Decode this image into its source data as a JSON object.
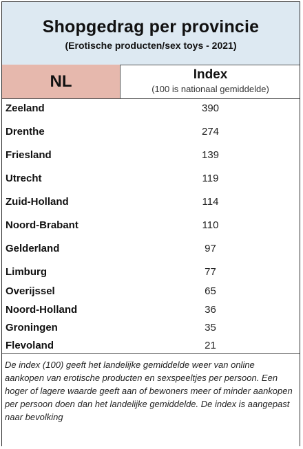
{
  "header": {
    "title": "Shopgedrag per provincie",
    "subtitle": "(Erotische producten/sex toys -  2021)"
  },
  "table_header": {
    "region": "NL",
    "index_label": "Index",
    "index_sub": "(100 is nationaal gemiddelde)"
  },
  "chart_data": {
    "type": "table",
    "title": "Shopgedrag per provincie",
    "subtitle": "(Erotische producten/sex toys -  2021)",
    "columns": [
      "NL",
      "Index"
    ],
    "categories": [
      "Zeeland",
      "Drenthe",
      "Friesland",
      "Utrecht",
      "Zuid-Holland",
      "Noord-Brabant",
      "Gelderland",
      "Limburg",
      "Overijssel",
      "Noord-Holland",
      "Groningen",
      "Flevoland"
    ],
    "values": [
      390,
      274,
      139,
      119,
      114,
      110,
      97,
      77,
      65,
      36,
      35,
      21
    ]
  },
  "footer": {
    "note": "De index (100) geeft het landelijke gemiddelde weer van online aankopen van erotische producten en sexspeeltjes per persoon. Een hoger of lagere waarde geeft aan of bewoners meer of minder aankopen per persoon doen dan het landelijke gemiddelde. De index is aangepast naar bevolking"
  }
}
